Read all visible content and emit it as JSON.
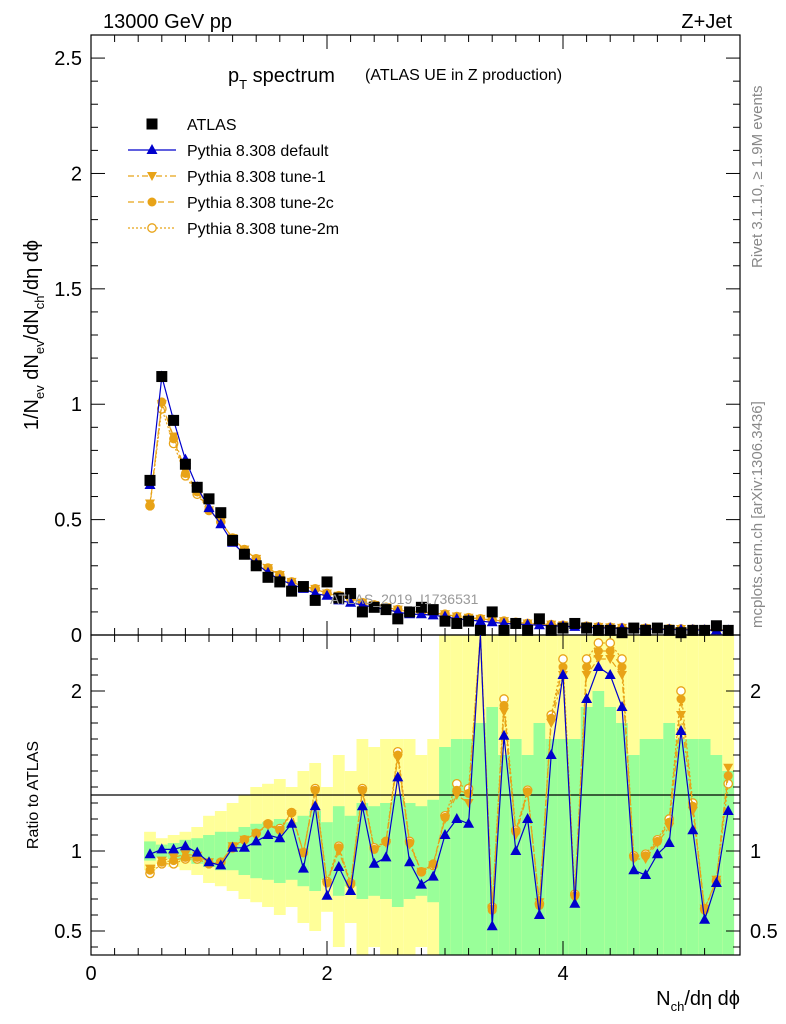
{
  "header": {
    "left": "13000 GeV pp",
    "right": "Z+Jet"
  },
  "side_labels": {
    "upper": "Rivet 3.1.10, ≥ 1.9M events",
    "lower": "mcplots.cern.ch [arXiv:1306.3436]"
  },
  "watermark": "ATLAS_2019_I1736531",
  "colors": {
    "atlas": "#000000",
    "default": "#0000cc",
    "tune": "#e8a317",
    "band_inner": "#99ff99",
    "band_outer": "#ffff99"
  },
  "chart_data": [
    {
      "type": "line",
      "title_main": "p",
      "title_sub": "T",
      "title_rest": " spectrum",
      "title_note": "(ATLAS UE in Z production)",
      "ylabel": {
        "a": "1/N",
        "b": "ev",
        "c": " dN",
        "d": "ev",
        "e": "/dN",
        "f": "ch",
        "g": "/dη dϕ"
      },
      "xlabel": {
        "a": "N",
        "b": "ch",
        "c": "/dη dϕ"
      },
      "xlim": [
        0,
        5.5
      ],
      "ylim": [
        0,
        2.6
      ],
      "x_ticks": [
        "0",
        "2",
        "4"
      ],
      "y_ticks": [
        "0",
        "0.5",
        "1",
        "1.5",
        "2",
        "2.5"
      ],
      "x": [
        0.5,
        0.6,
        0.7,
        0.8,
        0.9,
        1.0,
        1.1,
        1.2,
        1.3,
        1.4,
        1.5,
        1.6,
        1.7,
        1.8,
        1.9,
        2.0,
        2.1,
        2.2,
        2.3,
        2.4,
        2.5,
        2.6,
        2.7,
        2.8,
        2.9,
        3.0,
        3.1,
        3.2,
        3.3,
        3.4,
        3.5,
        3.6,
        3.7,
        3.8,
        3.9,
        4.0,
        4.1,
        4.2,
        4.3,
        4.4,
        4.5,
        4.6,
        4.7,
        4.8,
        4.9,
        5.0,
        5.1,
        5.2,
        5.3,
        5.4
      ],
      "legend": [
        "ATLAS",
        "Pythia 8.308 default",
        "Pythia 8.308 tune-1",
        "Pythia 8.308 tune-2c",
        "Pythia 8.308 tune-2m"
      ],
      "legend_position": "top-left",
      "series": [
        {
          "name": "ATLAS",
          "values": [
            0.67,
            1.12,
            0.93,
            0.74,
            0.64,
            0.59,
            0.53,
            0.41,
            0.35,
            0.3,
            0.25,
            0.23,
            0.19,
            0.21,
            0.15,
            0.23,
            0.16,
            0.18,
            0.1,
            0.12,
            0.11,
            0.07,
            0.1,
            0.12,
            0.11,
            0.06,
            0.05,
            0.06,
            0.02,
            0.1,
            0.02,
            0.05,
            0.02,
            0.07,
            0.02,
            0.03,
            0.05,
            0.03,
            0.02,
            0.02,
            0.01,
            0.03,
            0.02,
            0.03,
            0.02,
            0.01,
            0.02,
            0.02,
            0.04,
            0.02
          ]
        },
        {
          "name": "Pythia 8.308 default",
          "values": [
            0.65,
            1.12,
            0.93,
            0.76,
            0.64,
            0.55,
            0.48,
            0.4,
            0.35,
            0.31,
            0.27,
            0.24,
            0.22,
            0.2,
            0.18,
            0.17,
            0.15,
            0.14,
            0.13,
            0.12,
            0.11,
            0.1,
            0.09,
            0.09,
            0.085,
            0.08,
            0.07,
            0.065,
            0.06,
            0.055,
            0.05,
            0.048,
            0.045,
            0.042,
            0.04,
            0.038,
            0.035,
            0.033,
            0.031,
            0.03,
            0.028,
            0.027,
            0.026,
            0.025,
            0.024,
            0.023,
            0.022,
            0.021,
            0.02,
            0.02
          ]
        },
        {
          "name": "Pythia 8.308 tune-1",
          "values": [
            0.57,
            1.0,
            0.86,
            0.71,
            0.62,
            0.54,
            0.49,
            0.42,
            0.37,
            0.33,
            0.29,
            0.26,
            0.23,
            0.21,
            0.2,
            0.18,
            0.17,
            0.16,
            0.14,
            0.13,
            0.12,
            0.11,
            0.1,
            0.1,
            0.095,
            0.09,
            0.08,
            0.075,
            0.07,
            0.065,
            0.06,
            0.055,
            0.05,
            0.048,
            0.045,
            0.042,
            0.04,
            0.038,
            0.035,
            0.033,
            0.031,
            0.03,
            0.029,
            0.028,
            0.027,
            0.026,
            0.025,
            0.024,
            0.023,
            0.022
          ]
        },
        {
          "name": "Pythia 8.308 tune-2c",
          "values": [
            0.56,
            1.01,
            0.85,
            0.7,
            0.62,
            0.54,
            0.49,
            0.42,
            0.37,
            0.33,
            0.29,
            0.26,
            0.23,
            0.21,
            0.2,
            0.18,
            0.17,
            0.16,
            0.14,
            0.13,
            0.12,
            0.11,
            0.1,
            0.1,
            0.095,
            0.09,
            0.08,
            0.075,
            0.07,
            0.065,
            0.06,
            0.055,
            0.05,
            0.048,
            0.045,
            0.042,
            0.04,
            0.038,
            0.035,
            0.033,
            0.031,
            0.03,
            0.029,
            0.028,
            0.027,
            0.026,
            0.025,
            0.024,
            0.023,
            0.022
          ]
        },
        {
          "name": "Pythia 8.308 tune-2m",
          "values": [
            0.56,
            0.98,
            0.83,
            0.69,
            0.61,
            0.54,
            0.49,
            0.42,
            0.37,
            0.33,
            0.29,
            0.26,
            0.23,
            0.21,
            0.2,
            0.18,
            0.17,
            0.16,
            0.14,
            0.13,
            0.12,
            0.11,
            0.1,
            0.1,
            0.095,
            0.09,
            0.08,
            0.075,
            0.07,
            0.065,
            0.06,
            0.055,
            0.05,
            0.048,
            0.045,
            0.042,
            0.04,
            0.038,
            0.035,
            0.033,
            0.031,
            0.03,
            0.029,
            0.028,
            0.027,
            0.026,
            0.025,
            0.024,
            0.023,
            0.022
          ]
        }
      ]
    },
    {
      "type": "line",
      "ylabel": "Ratio to ATLAS",
      "xlim": [
        0,
        5.5
      ],
      "ylim": [
        0.35,
        2.35
      ],
      "y_ticks": [
        "0.5",
        "1",
        "2"
      ],
      "reference": 1,
      "x": [
        0.5,
        0.6,
        0.7,
        0.8,
        0.9,
        1.0,
        1.1,
        1.2,
        1.3,
        1.4,
        1.5,
        1.6,
        1.7,
        1.8,
        1.9,
        2.0,
        2.1,
        2.2,
        2.3,
        2.4,
        2.5,
        2.6,
        2.7,
        2.8,
        2.9,
        3.0,
        3.1,
        3.2,
        3.3,
        3.4,
        3.5,
        3.6,
        3.7,
        3.8,
        3.9,
        4.0,
        4.1,
        4.2,
        4.3,
        4.4,
        4.5,
        4.6,
        4.7,
        4.8,
        4.9,
        5.0,
        5.1,
        5.2,
        5.3,
        5.4
      ],
      "band_inner": [
        [
          0.94,
          1.06
        ],
        [
          0.96,
          1.04
        ],
        [
          0.95,
          1.05
        ],
        [
          0.94,
          1.07
        ],
        [
          0.92,
          1.08
        ],
        [
          0.9,
          1.1
        ],
        [
          0.88,
          1.12
        ],
        [
          0.88,
          1.12
        ],
        [
          0.85,
          1.15
        ],
        [
          0.83,
          1.17
        ],
        [
          0.82,
          1.18
        ],
        [
          0.8,
          1.2
        ],
        [
          0.82,
          1.18
        ],
        [
          0.78,
          1.22
        ],
        [
          0.75,
          1.25
        ],
        [
          0.82,
          1.18
        ],
        [
          0.72,
          1.28
        ],
        [
          0.78,
          1.22
        ],
        [
          0.7,
          1.3
        ],
        [
          0.72,
          1.28
        ],
        [
          0.7,
          1.3
        ],
        [
          0.65,
          1.35
        ],
        [
          0.7,
          1.3
        ],
        [
          0.72,
          1.28
        ],
        [
          0.68,
          1.32
        ],
        [
          0.35,
          1.65
        ],
        [
          0.35,
          1.7
        ],
        [
          0.35,
          1.7
        ],
        [
          0.35,
          1.8
        ],
        [
          0.35,
          1.9
        ],
        [
          0.35,
          1.6
        ],
        [
          0.35,
          1.7
        ],
        [
          0.35,
          1.6
        ],
        [
          0.35,
          1.8
        ],
        [
          0.35,
          1.7
        ],
        [
          0.35,
          1.7
        ],
        [
          0.35,
          1.7
        ],
        [
          0.35,
          1.9
        ],
        [
          0.35,
          2.0
        ],
        [
          0.35,
          1.9
        ],
        [
          0.35,
          1.8
        ],
        [
          0.35,
          1.6
        ],
        [
          0.35,
          1.7
        ],
        [
          0.35,
          1.7
        ],
        [
          0.35,
          1.8
        ],
        [
          0.35,
          1.7
        ],
        [
          0.35,
          1.7
        ],
        [
          0.35,
          1.7
        ],
        [
          0.35,
          1.6
        ],
        [
          0.35,
          1.5
        ]
      ],
      "band_outer": [
        [
          0.88,
          1.12
        ],
        [
          0.92,
          1.08
        ],
        [
          0.9,
          1.1
        ],
        [
          0.88,
          1.12
        ],
        [
          0.85,
          1.15
        ],
        [
          0.8,
          1.22
        ],
        [
          0.78,
          1.25
        ],
        [
          0.75,
          1.3
        ],
        [
          0.7,
          1.35
        ],
        [
          0.68,
          1.4
        ],
        [
          0.65,
          1.42
        ],
        [
          0.6,
          1.45
        ],
        [
          0.65,
          1.4
        ],
        [
          0.55,
          1.5
        ],
        [
          0.5,
          1.55
        ],
        [
          0.62,
          1.4
        ],
        [
          0.4,
          1.6
        ],
        [
          0.55,
          1.5
        ],
        [
          0.35,
          1.7
        ],
        [
          0.4,
          1.65
        ],
        [
          0.35,
          1.7
        ],
        [
          0.35,
          1.7
        ],
        [
          0.35,
          1.7
        ],
        [
          0.4,
          1.6
        ],
        [
          0.35,
          1.7
        ],
        [
          0.35,
          2.5
        ],
        [
          0.35,
          2.35
        ],
        [
          0.35,
          2.35
        ],
        [
          0.35,
          2.35
        ],
        [
          0.35,
          2.35
        ],
        [
          0.35,
          2.35
        ],
        [
          0.35,
          2.35
        ],
        [
          0.35,
          2.35
        ],
        [
          0.35,
          2.35
        ],
        [
          0.35,
          2.35
        ],
        [
          0.35,
          2.35
        ],
        [
          0.35,
          2.35
        ],
        [
          0.35,
          2.35
        ],
        [
          0.35,
          2.35
        ],
        [
          0.35,
          2.35
        ],
        [
          0.35,
          2.35
        ],
        [
          0.35,
          2.35
        ],
        [
          0.35,
          2.35
        ],
        [
          0.35,
          2.35
        ],
        [
          0.35,
          2.35
        ],
        [
          0.35,
          2.35
        ],
        [
          0.35,
          2.35
        ],
        [
          0.35,
          2.35
        ],
        [
          0.35,
          2.35
        ],
        [
          0.35,
          2.35
        ]
      ],
      "series": [
        {
          "name": "Pythia 8.308 default",
          "values": [
            0.98,
            1.01,
            1.01,
            1.03,
            0.99,
            0.93,
            0.91,
            1.02,
            1.02,
            1.06,
            1.1,
            1.08,
            1.17,
            0.89,
            1.28,
            0.72,
            0.9,
            0.75,
            1.28,
            0.92,
            0.96,
            1.46,
            0.93,
            0.79,
            0.84,
            1.1,
            1.2,
            1.17,
            2.4,
            0.53,
            1.72,
            1.0,
            1.2,
            0.6,
            1.6,
            2.1,
            0.67,
            1.95,
            2.15,
            2.1,
            1.9,
            0.88,
            0.85,
            0.98,
            1.05,
            1.75,
            1.13,
            0.57,
            0.8,
            1.25
          ]
        },
        {
          "name": "Pythia 8.308 tune-1",
          "values": [
            0.89,
            0.94,
            0.96,
            0.98,
            0.97,
            0.93,
            0.92,
            1.03,
            1.07,
            1.11,
            1.16,
            1.13,
            1.23,
            0.99,
            1.37,
            0.8,
            1.0,
            0.79,
            1.37,
            1.01,
            1.05,
            1.58,
            1.04,
            0.87,
            0.91,
            1.2,
            1.35,
            1.3,
            2.45,
            0.64,
            1.87,
            1.1,
            1.36,
            0.68,
            1.8,
            2.1,
            0.7,
            2.1,
            2.2,
            2.2,
            2.1,
            0.95,
            0.95,
            1.05,
            1.15,
            1.85,
            1.25,
            0.64,
            0.82,
            1.52
          ]
        },
        {
          "name": "Pythia 8.308 tune-2c",
          "values": [
            0.88,
            0.93,
            0.94,
            0.96,
            0.96,
            0.92,
            0.93,
            1.03,
            1.07,
            1.11,
            1.17,
            1.13,
            1.24,
            0.99,
            1.38,
            0.8,
            1.02,
            0.79,
            1.38,
            1.01,
            1.06,
            1.6,
            1.05,
            0.87,
            0.92,
            1.21,
            1.38,
            1.36,
            2.45,
            0.63,
            1.91,
            1.12,
            1.37,
            0.66,
            1.83,
            2.15,
            0.72,
            2.15,
            2.25,
            2.25,
            2.15,
            0.96,
            0.97,
            1.06,
            1.18,
            1.95,
            1.28,
            0.63,
            0.82,
            1.47
          ]
        },
        {
          "name": "Pythia 8.308 tune-2m",
          "values": [
            0.86,
            0.92,
            0.92,
            0.95,
            0.95,
            0.92,
            0.93,
            1.02,
            1.07,
            1.11,
            1.17,
            1.14,
            1.24,
            0.99,
            1.39,
            0.81,
            1.03,
            0.8,
            1.39,
            1.02,
            1.06,
            1.62,
            1.06,
            0.87,
            0.91,
            1.22,
            1.42,
            1.39,
            2.45,
            0.65,
            1.95,
            1.13,
            1.38,
            0.67,
            1.85,
            2.2,
            0.73,
            2.2,
            2.3,
            2.3,
            2.2,
            0.97,
            0.98,
            1.07,
            1.2,
            2.0,
            1.3,
            0.64,
            0.81,
            1.42
          ]
        }
      ]
    }
  ]
}
